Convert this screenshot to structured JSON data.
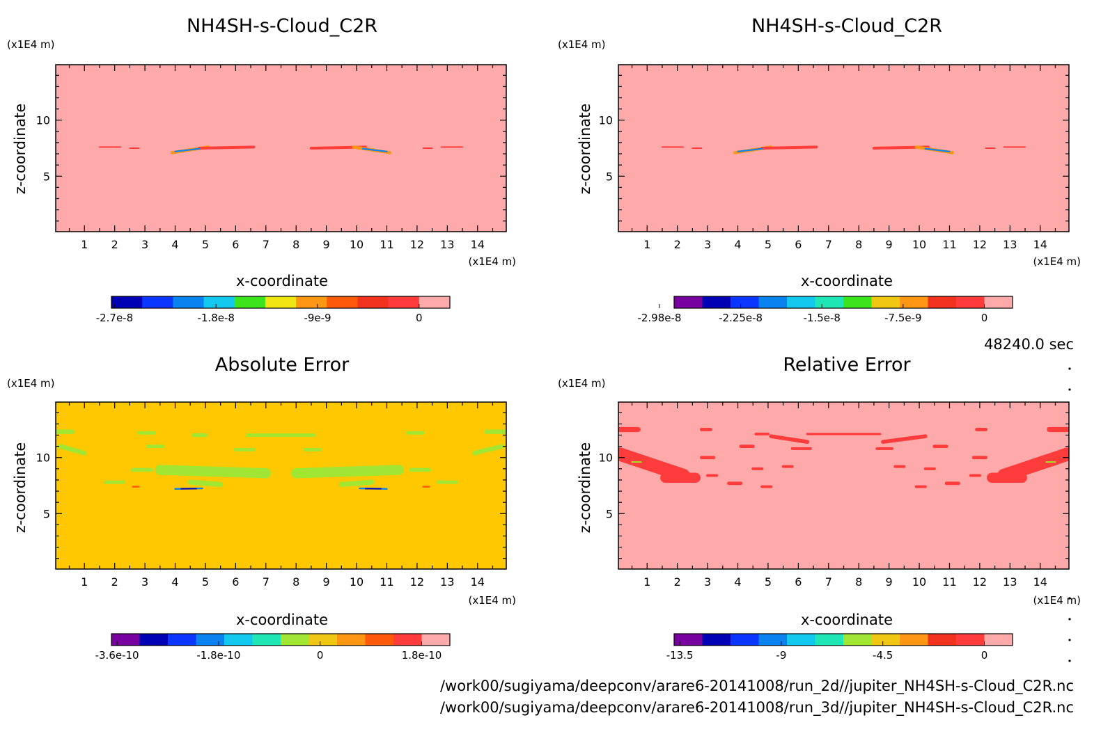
{
  "time_label": "48240.0 sec",
  "file_paths": [
    "/work00/sugiyama/deepconv/arare6-20141008/run_2d//jupiter_NH4SH-s-Cloud_C2R.nc",
    "/work00/sugiyama/deepconv/arare6-20141008/run_3d//jupiter_NH4SH-s-Cloud_C2R.nc"
  ],
  "chart_data": [
    {
      "type": "heatmap",
      "title": "NH4SH-s-Cloud_C2R",
      "xlabel": "x-coordinate",
      "ylabel": "z-coordinate",
      "x_unit": "(x1E4 m)",
      "y_unit": "(x1E4 m)",
      "xlim": [
        0.05,
        14.95
      ],
      "ylim": [
        0.05,
        14.95
      ],
      "xticks": [
        "1",
        "2",
        "3",
        "4",
        "5",
        "6",
        "7",
        "8",
        "9",
        "10",
        "11",
        "12",
        "13",
        "14"
      ],
      "yticks": [
        "5",
        "10"
      ],
      "background": "#ffaaaa",
      "colorbar": {
        "colors": [
          "#0000b4",
          "#0a36ff",
          "#0a82f0",
          "#12c8ee",
          "#3ce41e",
          "#f0e614",
          "#ff9614",
          "#ff5a0a",
          "#f0321e",
          "#ff3c3c",
          "#ffaaaa"
        ],
        "tick_labels": [
          "-2.7e-8",
          "-1.8e-8",
          "-9e-9",
          "0"
        ]
      },
      "features": [
        {
          "x": [
            1.5,
            2.2
          ],
          "z": [
            7.6,
            7.6
          ],
          "color": "#ff3c3c",
          "w": 0.12
        },
        {
          "x": [
            2.5,
            2.8
          ],
          "z": [
            7.5,
            7.5
          ],
          "color": "#ff3c3c",
          "w": 0.12
        },
        {
          "x": [
            3.9,
            5.1
          ],
          "z": [
            7.1,
            7.6
          ],
          "color": "#ff9614",
          "w": 0.28
        },
        {
          "x": [
            4.8,
            6.6
          ],
          "z": [
            7.5,
            7.6
          ],
          "color": "#ff3c3c",
          "w": 0.25
        },
        {
          "x": [
            4.0,
            4.8
          ],
          "z": [
            7.2,
            7.45
          ],
          "color": "#0a82f0",
          "w": 0.14
        },
        {
          "x": [
            8.5,
            10.3
          ],
          "z": [
            7.5,
            7.6
          ],
          "color": "#ff3c3c",
          "w": 0.25
        },
        {
          "x": [
            9.9,
            11.1
          ],
          "z": [
            7.6,
            7.1
          ],
          "color": "#ff9614",
          "w": 0.28
        },
        {
          "x": [
            10.2,
            11.0
          ],
          "z": [
            7.45,
            7.2
          ],
          "color": "#0a82f0",
          "w": 0.14
        },
        {
          "x": [
            12.2,
            12.5
          ],
          "z": [
            7.5,
            7.5
          ],
          "color": "#ff3c3c",
          "w": 0.12
        },
        {
          "x": [
            12.8,
            13.5
          ],
          "z": [
            7.6,
            7.6
          ],
          "color": "#ff3c3c",
          "w": 0.12
        }
      ]
    },
    {
      "type": "heatmap",
      "title": "NH4SH-s-Cloud_C2R",
      "xlabel": "x-coordinate",
      "ylabel": "z-coordinate",
      "x_unit": "(x1E4 m)",
      "y_unit": "(x1E4 m)",
      "xlim": [
        0.05,
        14.95
      ],
      "ylim": [
        0.05,
        14.95
      ],
      "xticks": [
        "1",
        "2",
        "3",
        "4",
        "5",
        "6",
        "7",
        "8",
        "9",
        "10",
        "11",
        "12",
        "13",
        "14"
      ],
      "yticks": [
        "5",
        "10"
      ],
      "background": "#ffaaaa",
      "colorbar": {
        "colors": [
          "#7800a0",
          "#0000b4",
          "#0a36ff",
          "#0a82f0",
          "#12c8ee",
          "#1ee6b4",
          "#3ce41e",
          "#f0c814",
          "#ff9614",
          "#f0321e",
          "#ff3c3c",
          "#ffaaaa"
        ],
        "tick_labels": [
          "-2.98e-8",
          "-2.25e-8",
          "-1.5e-8",
          "-7.5e-9",
          "0"
        ]
      },
      "features": [
        {
          "x": [
            1.5,
            2.2
          ],
          "z": [
            7.6,
            7.6
          ],
          "color": "#ff3c3c",
          "w": 0.12
        },
        {
          "x": [
            2.5,
            2.8
          ],
          "z": [
            7.5,
            7.5
          ],
          "color": "#ff3c3c",
          "w": 0.12
        },
        {
          "x": [
            3.9,
            5.1
          ],
          "z": [
            7.1,
            7.6
          ],
          "color": "#ff9614",
          "w": 0.28
        },
        {
          "x": [
            4.8,
            6.6
          ],
          "z": [
            7.5,
            7.6
          ],
          "color": "#ff3c3c",
          "w": 0.25
        },
        {
          "x": [
            4.0,
            4.8
          ],
          "z": [
            7.2,
            7.45
          ],
          "color": "#0a82f0",
          "w": 0.14
        },
        {
          "x": [
            8.5,
            10.3
          ],
          "z": [
            7.5,
            7.6
          ],
          "color": "#ff3c3c",
          "w": 0.25
        },
        {
          "x": [
            9.9,
            11.1
          ],
          "z": [
            7.6,
            7.1
          ],
          "color": "#ff9614",
          "w": 0.28
        },
        {
          "x": [
            10.2,
            11.0
          ],
          "z": [
            7.45,
            7.2
          ],
          "color": "#0a82f0",
          "w": 0.14
        },
        {
          "x": [
            12.2,
            12.5
          ],
          "z": [
            7.5,
            7.5
          ],
          "color": "#ff3c3c",
          "w": 0.12
        },
        {
          "x": [
            12.8,
            13.5
          ],
          "z": [
            7.6,
            7.6
          ],
          "color": "#ff3c3c",
          "w": 0.12
        }
      ]
    },
    {
      "type": "heatmap",
      "title": "Absolute Error",
      "xlabel": "x-coordinate",
      "ylabel": "z-coordinate",
      "x_unit": "(x1E4 m)",
      "y_unit": "(x1E4 m)",
      "xlim": [
        0.05,
        14.95
      ],
      "ylim": [
        0.05,
        14.95
      ],
      "xticks": [
        "1",
        "2",
        "3",
        "4",
        "5",
        "6",
        "7",
        "8",
        "9",
        "10",
        "11",
        "12",
        "13",
        "14"
      ],
      "yticks": [
        "5",
        "10"
      ],
      "background": "#ffc800",
      "colorbar": {
        "colors": [
          "#7800a0",
          "#0000b4",
          "#0a36ff",
          "#0a82f0",
          "#12c8ee",
          "#1ee6b4",
          "#a0e632",
          "#f0c814",
          "#ff9614",
          "#ff5a0a",
          "#ff3c3c",
          "#ffaaaa"
        ],
        "tick_labels": [
          "-3.6e-10",
          "-1.8e-10",
          "0",
          "1.8e-10"
        ]
      },
      "features": [
        {
          "x": [
            0.1,
            0.6
          ],
          "z": [
            12.3,
            12.3
          ],
          "color": "#a0e632",
          "w": 0.4
        },
        {
          "x": [
            0.2,
            1.0
          ],
          "z": [
            11.0,
            10.4
          ],
          "color": "#a0e632",
          "w": 0.4
        },
        {
          "x": [
            2.8,
            3.3
          ],
          "z": [
            12.2,
            12.2
          ],
          "color": "#a0e632",
          "w": 0.3
        },
        {
          "x": [
            3.1,
            3.6
          ],
          "z": [
            11.0,
            11.0
          ],
          "color": "#a0e632",
          "w": 0.3
        },
        {
          "x": [
            2.6,
            3.2
          ],
          "z": [
            8.9,
            8.9
          ],
          "color": "#a0e632",
          "w": 0.35
        },
        {
          "x": [
            1.7,
            2.3
          ],
          "z": [
            7.8,
            7.8
          ],
          "color": "#a0e632",
          "w": 0.3
        },
        {
          "x": [
            3.5,
            7.0
          ],
          "z": [
            8.9,
            8.6
          ],
          "color": "#a0e632",
          "w": 0.9
        },
        {
          "x": [
            4.5,
            5.5
          ],
          "z": [
            7.8,
            7.6
          ],
          "color": "#a0e632",
          "w": 0.45
        },
        {
          "x": [
            4.6,
            5.0
          ],
          "z": [
            12.0,
            12.0
          ],
          "color": "#a0e632",
          "w": 0.35
        },
        {
          "x": [
            6.4,
            8.6
          ],
          "z": [
            12.0,
            12.0
          ],
          "color": "#a0e632",
          "w": 0.3
        },
        {
          "x": [
            6.0,
            6.6
          ],
          "z": [
            10.7,
            10.7
          ],
          "color": "#a0e632",
          "w": 0.3
        },
        {
          "x": [
            8.3,
            8.8
          ],
          "z": [
            10.7,
            10.7
          ],
          "color": "#a0e632",
          "w": 0.3
        },
        {
          "x": [
            8.0,
            11.4
          ],
          "z": [
            8.6,
            8.9
          ],
          "color": "#a0e632",
          "w": 0.9
        },
        {
          "x": [
            9.5,
            10.5
          ],
          "z": [
            7.6,
            7.8
          ],
          "color": "#a0e632",
          "w": 0.45
        },
        {
          "x": [
            11.7,
            12.2
          ],
          "z": [
            12.2,
            12.2
          ],
          "color": "#a0e632",
          "w": 0.3
        },
        {
          "x": [
            11.8,
            12.4
          ],
          "z": [
            8.9,
            8.9
          ],
          "color": "#a0e632",
          "w": 0.35
        },
        {
          "x": [
            12.7,
            13.3
          ],
          "z": [
            7.8,
            7.8
          ],
          "color": "#a0e632",
          "w": 0.3
        },
        {
          "x": [
            14.3,
            14.9
          ],
          "z": [
            12.3,
            12.3
          ],
          "color": "#a0e632",
          "w": 0.4
        },
        {
          "x": [
            13.9,
            14.8
          ],
          "z": [
            10.4,
            11.0
          ],
          "color": "#a0e632",
          "w": 0.4
        },
        {
          "x": [
            2.6,
            2.8
          ],
          "z": [
            7.4,
            7.4
          ],
          "color": "#ff5a0a",
          "w": 0.15
        },
        {
          "x": [
            12.2,
            12.4
          ],
          "z": [
            7.4,
            7.4
          ],
          "color": "#ff5a0a",
          "w": 0.15
        },
        {
          "x": [
            4.0,
            4.9
          ],
          "z": [
            7.2,
            7.25
          ],
          "color": "#0a82f0",
          "w": 0.15
        },
        {
          "x": [
            4.2,
            4.7
          ],
          "z": [
            7.22,
            7.22
          ],
          "color": "#0000b4",
          "w": 0.07
        },
        {
          "x": [
            10.1,
            11.0
          ],
          "z": [
            7.25,
            7.2
          ],
          "color": "#0a82f0",
          "w": 0.15
        },
        {
          "x": [
            10.3,
            10.8
          ],
          "z": [
            7.22,
            7.22
          ],
          "color": "#0000b4",
          "w": 0.07
        }
      ]
    },
    {
      "type": "heatmap",
      "title": "Relative Error",
      "xlabel": "x-coordinate",
      "ylabel": "z-coordinate",
      "x_unit": "(x1E4 m)",
      "y_unit": "(x1E4 m)",
      "xlim": [
        0.05,
        14.95
      ],
      "ylim": [
        0.05,
        14.95
      ],
      "xticks": [
        "1",
        "2",
        "3",
        "4",
        "5",
        "6",
        "7",
        "8",
        "9",
        "10",
        "11",
        "12",
        "13",
        "14"
      ],
      "yticks": [
        "5",
        "10"
      ],
      "background": "#ffaaaa",
      "colorbar": {
        "colors": [
          "#7800a0",
          "#0000b4",
          "#0a36ff",
          "#0a82f0",
          "#12c8ee",
          "#1ee6b4",
          "#a0e632",
          "#f0c814",
          "#ff9614",
          "#f0321e",
          "#ff3c3c",
          "#ffaaaa"
        ],
        "tick_labels": [
          "-13.5",
          "-9",
          "-4.5",
          "0"
        ]
      },
      "features": [
        {
          "x": [
            0.1,
            0.7
          ],
          "z": [
            12.5,
            12.5
          ],
          "color": "#ff3c3c",
          "w": 0.45
        },
        {
          "x": [
            0.1,
            2.2
          ],
          "z": [
            10.3,
            8.4
          ],
          "color": "#ff3c3c",
          "w": 1.2
        },
        {
          "x": [
            1.6,
            2.6
          ],
          "z": [
            8.2,
            8.2
          ],
          "color": "#ff3c3c",
          "w": 0.9
        },
        {
          "x": [
            2.8,
            3.2
          ],
          "z": [
            10.0,
            10.0
          ],
          "color": "#ff3c3c",
          "w": 0.3
        },
        {
          "x": [
            3.0,
            3.3
          ],
          "z": [
            8.4,
            8.4
          ],
          "color": "#ff3c3c",
          "w": 0.25
        },
        {
          "x": [
            2.8,
            3.1
          ],
          "z": [
            12.5,
            12.5
          ],
          "color": "#ff3c3c",
          "w": 0.3
        },
        {
          "x": [
            4.1,
            4.5
          ],
          "z": [
            11.0,
            11.0
          ],
          "color": "#ff3c3c",
          "w": 0.3
        },
        {
          "x": [
            4.5,
            4.8
          ],
          "z": [
            9.0,
            9.0
          ],
          "color": "#ff3c3c",
          "w": 0.25
        },
        {
          "x": [
            3.7,
            4.1
          ],
          "z": [
            7.7,
            7.7
          ],
          "color": "#ff3c3c",
          "w": 0.3
        },
        {
          "x": [
            4.8,
            5.1
          ],
          "z": [
            7.4,
            7.4
          ],
          "color": "#ff3c3c",
          "w": 0.25
        },
        {
          "x": [
            4.6,
            5.0
          ],
          "z": [
            12.1,
            12.1
          ],
          "color": "#ff3c3c",
          "w": 0.25
        },
        {
          "x": [
            5.1,
            6.3
          ],
          "z": [
            11.9,
            11.4
          ],
          "color": "#ff3c3c",
          "w": 0.35
        },
        {
          "x": [
            6.3,
            8.7
          ],
          "z": [
            12.1,
            12.1
          ],
          "color": "#ff3c3c",
          "w": 0.2
        },
        {
          "x": [
            5.8,
            6.4
          ],
          "z": [
            10.8,
            10.8
          ],
          "color": "#ff3c3c",
          "w": 0.25
        },
        {
          "x": [
            8.6,
            9.1
          ],
          "z": [
            10.8,
            10.8
          ],
          "color": "#ff3c3c",
          "w": 0.25
        },
        {
          "x": [
            8.8,
            10.2
          ],
          "z": [
            11.4,
            11.9
          ],
          "color": "#ff3c3c",
          "w": 0.35
        },
        {
          "x": [
            5.5,
            5.8
          ],
          "z": [
            9.2,
            9.2
          ],
          "color": "#ff3c3c",
          "w": 0.25
        },
        {
          "x": [
            9.2,
            9.5
          ],
          "z": [
            9.2,
            9.2
          ],
          "color": "#ff3c3c",
          "w": 0.25
        },
        {
          "x": [
            9.9,
            10.2
          ],
          "z": [
            7.4,
            7.4
          ],
          "color": "#ff3c3c",
          "w": 0.25
        },
        {
          "x": [
            10.9,
            11.3
          ],
          "z": [
            7.7,
            7.7
          ],
          "color": "#ff3c3c",
          "w": 0.3
        },
        {
          "x": [
            10.2,
            10.5
          ],
          "z": [
            9.0,
            9.0
          ],
          "color": "#ff3c3c",
          "w": 0.25
        },
        {
          "x": [
            10.5,
            10.9
          ],
          "z": [
            11.0,
            11.0
          ],
          "color": "#ff3c3c",
          "w": 0.3
        },
        {
          "x": [
            11.8,
            12.2
          ],
          "z": [
            10.0,
            10.0
          ],
          "color": "#ff3c3c",
          "w": 0.3
        },
        {
          "x": [
            11.7,
            12.0
          ],
          "z": [
            8.4,
            8.4
          ],
          "color": "#ff3c3c",
          "w": 0.25
        },
        {
          "x": [
            11.9,
            12.2
          ],
          "z": [
            12.5,
            12.5
          ],
          "color": "#ff3c3c",
          "w": 0.3
        },
        {
          "x": [
            12.4,
            13.4
          ],
          "z": [
            8.2,
            8.2
          ],
          "color": "#ff3c3c",
          "w": 0.9
        },
        {
          "x": [
            12.8,
            14.9
          ],
          "z": [
            8.4,
            10.3
          ],
          "color": "#ff3c3c",
          "w": 1.2
        },
        {
          "x": [
            14.3,
            14.9
          ],
          "z": [
            12.5,
            12.5
          ],
          "color": "#ff3c3c",
          "w": 0.45
        },
        {
          "x": [
            0.5,
            0.8
          ],
          "z": [
            9.6,
            9.6
          ],
          "color": "#a0e632",
          "w": 0.1
        },
        {
          "x": [
            14.2,
            14.5
          ],
          "z": [
            9.6,
            9.6
          ],
          "color": "#a0e632",
          "w": 0.1
        }
      ]
    }
  ]
}
